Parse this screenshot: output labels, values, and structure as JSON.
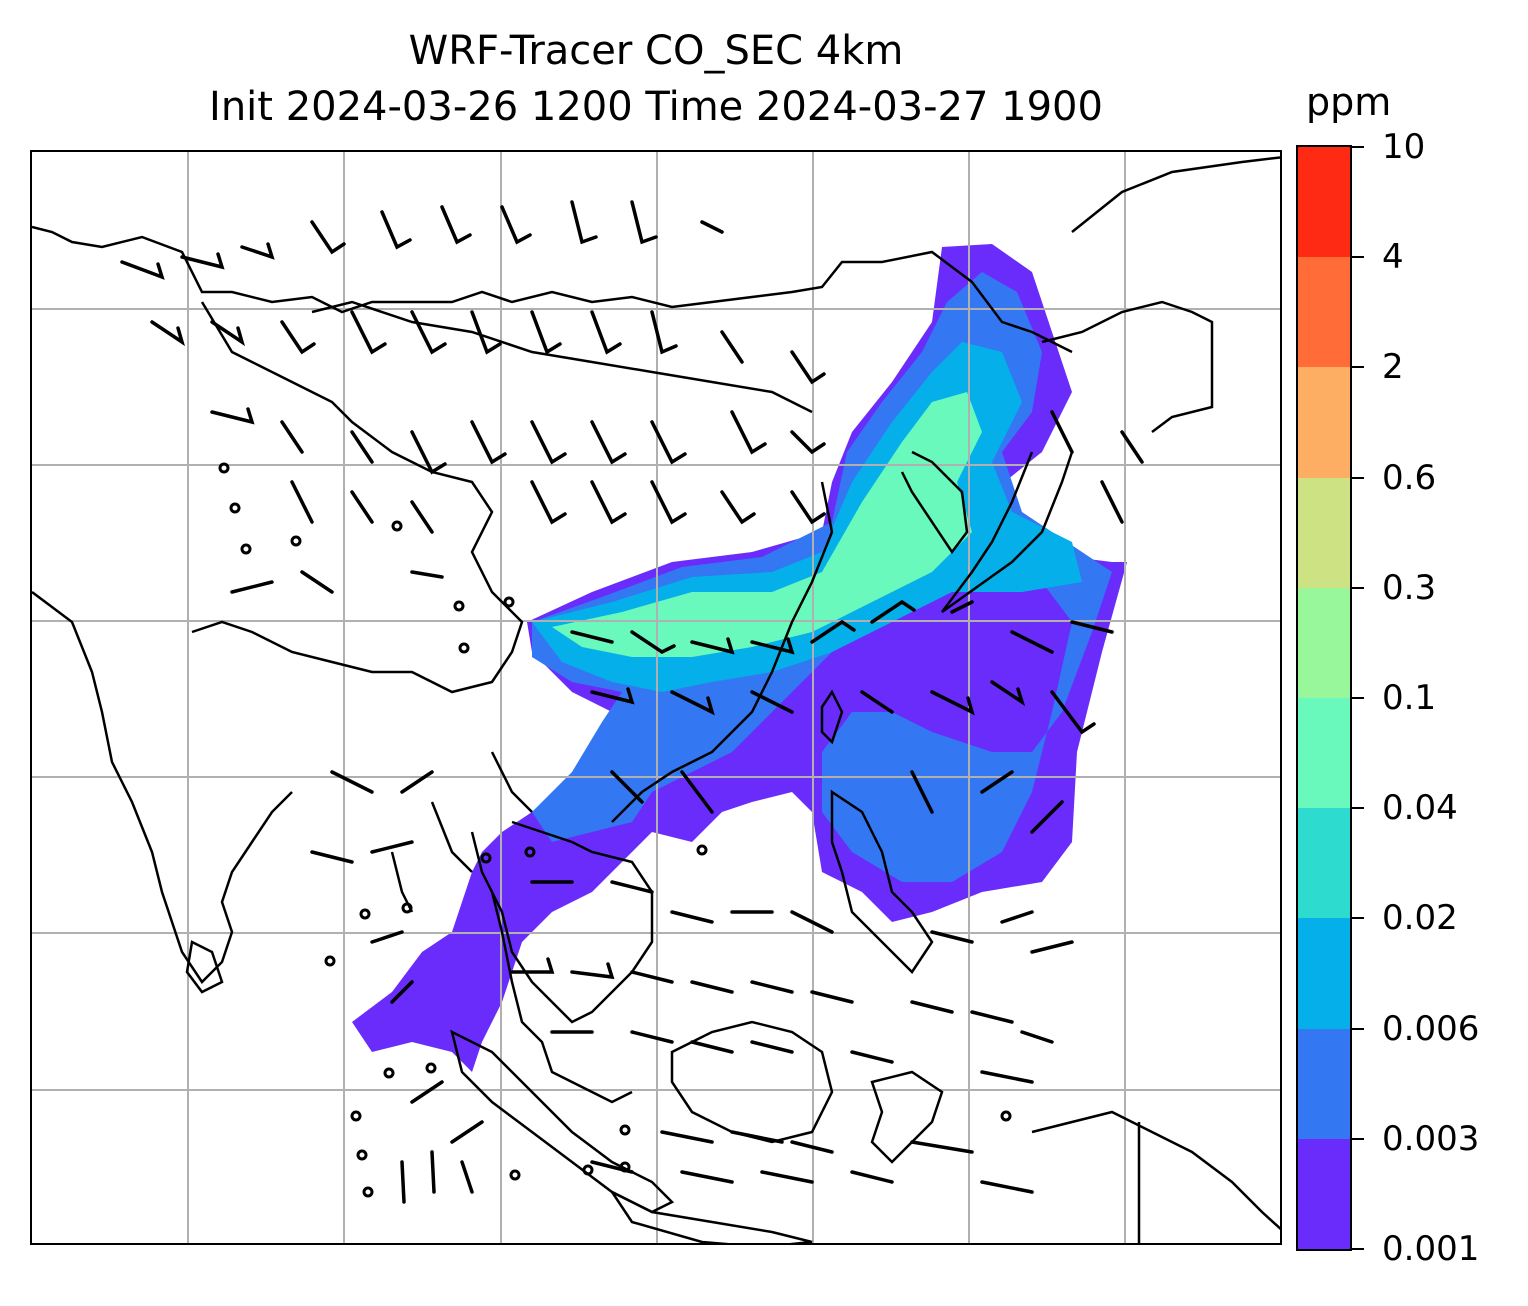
{
  "title": {
    "line1": "WRF-Tracer CO_SEC 4km",
    "line2": "Init 2024-03-26 1200 Time 2024-03-27 1900"
  },
  "colorbar": {
    "unit": "ppm",
    "tick_labels": [
      "0.001",
      "0.003",
      "0.006",
      "0.02",
      "0.04",
      "0.1",
      "0.3",
      "0.6",
      "2",
      "4",
      "10"
    ],
    "colors": [
      "#6a2cfb",
      "#3477f2",
      "#05b0ea",
      "#2ddccf",
      "#69f9bd",
      "#97f79a",
      "#cde282",
      "#fdae62",
      "#ff6c38",
      "#ff2a14"
    ]
  },
  "map": {
    "region": "East and Southeast Asia",
    "features": [
      "coastlines",
      "country borders",
      "lat/lon gridlines",
      "wind barbs",
      "CO tracer concentration shading"
    ]
  }
}
